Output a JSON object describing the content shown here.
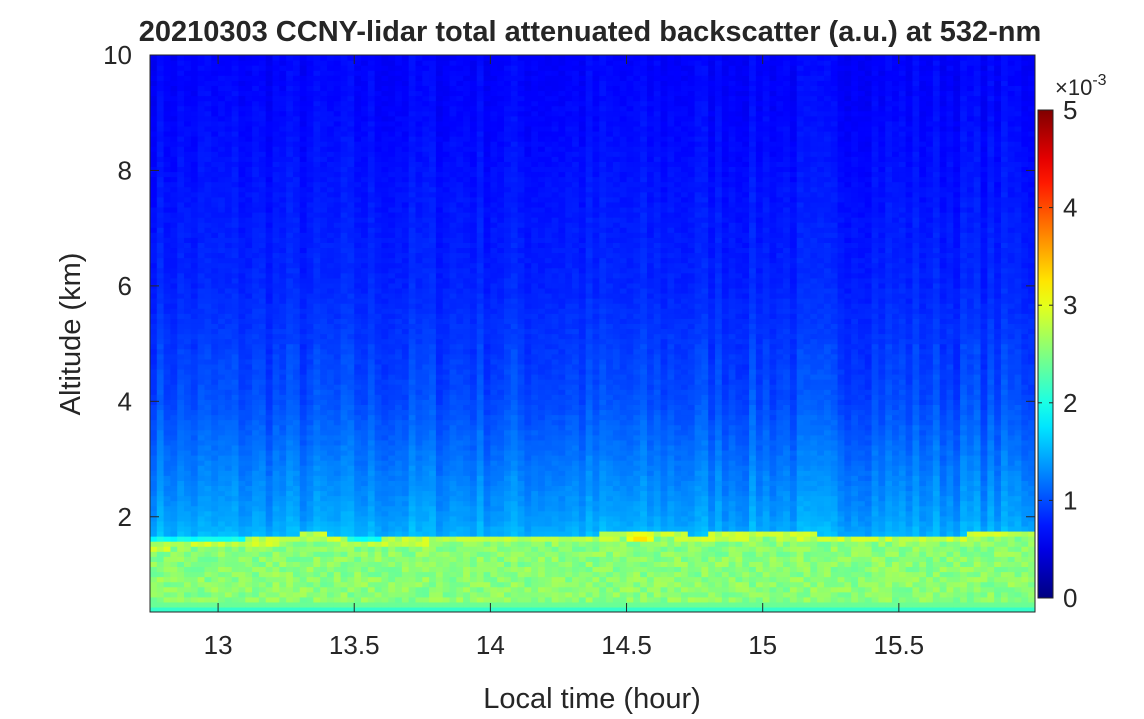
{
  "chart_data": {
    "type": "heatmap",
    "title": "20210303 CCNY-lidar total attenuated backscatter (a.u.) at 532-nm",
    "xlabel": "Local time (hour)",
    "ylabel": "Altitude (km)",
    "xlim": [
      12.75,
      16.0
    ],
    "ylim": [
      0.35,
      10
    ],
    "xticks": [
      13,
      13.5,
      14,
      14.5,
      15,
      15.5
    ],
    "xtick_labels": [
      "13",
      "13.5",
      "14",
      "14.5",
      "15",
      "15.5"
    ],
    "yticks": [
      2,
      4,
      6,
      8,
      10
    ],
    "ytick_labels": [
      "2",
      "4",
      "6",
      "8",
      "10"
    ],
    "colorbar": {
      "colormap": "jet",
      "clim": [
        0,
        0.005
      ],
      "ticks": [
        0,
        1,
        2,
        3,
        4,
        5
      ],
      "tick_labels": [
        "0",
        "1",
        "2",
        "3",
        "4",
        "5"
      ],
      "exponent_label": "×10",
      "exponent_power": "-3",
      "units": "a.u."
    },
    "grid": false,
    "profile": {
      "altitude_km": [
        0.35,
        0.5,
        1.0,
        1.3,
        1.5,
        1.7,
        2.0,
        2.5,
        3.0,
        3.5,
        4.0,
        5.0,
        6.0,
        7.0,
        8.0,
        9.0,
        10.0
      ],
      "backscatter_x1e-3": [
        2.0,
        2.6,
        2.8,
        2.7,
        2.6,
        1.5,
        1.4,
        1.3,
        1.2,
        1.1,
        1.0,
        0.9,
        0.8,
        0.75,
        0.7,
        0.65,
        0.62
      ]
    },
    "boundary_layer_top_km": {
      "time_hour": [
        12.75,
        13.0,
        13.25,
        13.35,
        13.5,
        13.75,
        14.0,
        14.25,
        14.5,
        14.6,
        14.75,
        15.0,
        15.25,
        15.5,
        15.75,
        15.85,
        16.0
      ],
      "height_km": [
        1.55,
        1.6,
        1.65,
        1.75,
        1.6,
        1.65,
        1.7,
        1.65,
        1.75,
        1.8,
        1.7,
        1.75,
        1.7,
        1.65,
        1.7,
        1.8,
        1.75
      ]
    },
    "peak_region": {
      "time_hour": 14.55,
      "altitude_km": 1.65,
      "backscatter_x1e-3": 3.5
    }
  }
}
